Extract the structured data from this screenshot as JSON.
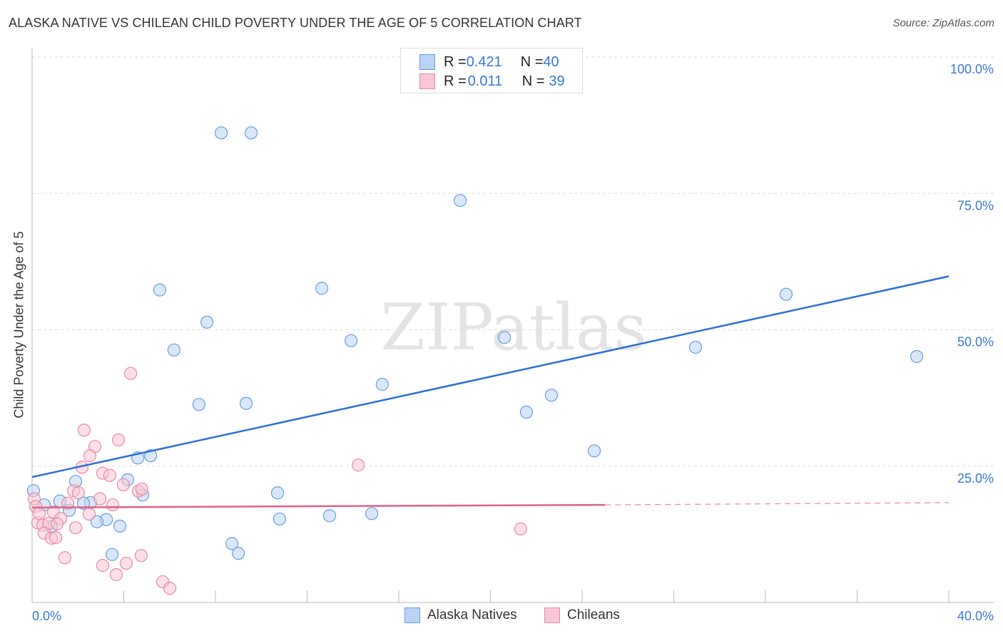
{
  "title": "ALASKA NATIVE VS CHILEAN CHILD POVERTY UNDER THE AGE OF 5 CORRELATION CHART",
  "source": "Source: ZipAtlas.com",
  "watermark": "ZIPatlas",
  "chart_data": {
    "type": "scatter",
    "title": "ALASKA NATIVE VS CHILEAN CHILD POVERTY UNDER THE AGE OF 5 CORRELATION CHART",
    "xlabel": "",
    "ylabel": "Child Poverty Under the Age of 5",
    "xlim": [
      0,
      40
    ],
    "ylim": [
      0,
      100
    ],
    "x_tick_labels": [
      "0.0%",
      "40.0%"
    ],
    "y_tick_labels": [
      "25.0%",
      "50.0%",
      "75.0%",
      "100.0%"
    ],
    "y_ticks": [
      25,
      50,
      75,
      100
    ],
    "grid": true,
    "legend": {
      "placement": "top-center",
      "entries": [
        {
          "r_label": "R = ",
          "r": "0.421",
          "n_label": "N = ",
          "n": "40"
        },
        {
          "r_label": "R = ",
          "r": "0.011",
          "n_label": "N = ",
          "n": "39"
        }
      ]
    },
    "series": [
      {
        "name": "Alaska Natives",
        "color": "#6a9de0",
        "fill": "#b9d3f4",
        "trend": {
          "x": [
            0,
            40
          ],
          "y": [
            23.0,
            59.8
          ]
        },
        "points": [
          [
            8.25,
            86.1
          ],
          [
            9.56,
            86.1
          ],
          [
            18.68,
            73.7
          ],
          [
            5.57,
            57.3
          ],
          [
            12.64,
            57.6
          ],
          [
            7.63,
            51.4
          ],
          [
            32.9,
            56.5
          ],
          [
            6.19,
            46.3
          ],
          [
            13.92,
            48.0
          ],
          [
            20.61,
            48.6
          ],
          [
            28.95,
            46.8
          ],
          [
            38.6,
            45.1
          ],
          [
            15.28,
            40.0
          ],
          [
            7.28,
            36.3
          ],
          [
            9.34,
            36.5
          ],
          [
            22.66,
            38.0
          ],
          [
            21.57,
            34.9
          ],
          [
            24.53,
            27.8
          ],
          [
            4.61,
            26.5
          ],
          [
            5.17,
            26.9
          ],
          [
            4.17,
            22.5
          ],
          [
            1.9,
            22.2
          ],
          [
            0.06,
            20.5
          ],
          [
            4.83,
            19.7
          ],
          [
            10.71,
            20.1
          ],
          [
            1.21,
            18.6
          ],
          [
            2.55,
            18.3
          ],
          [
            2.24,
            18.2
          ],
          [
            1.62,
            16.9
          ],
          [
            0.53,
            17.9
          ],
          [
            3.24,
            15.2
          ],
          [
            2.83,
            14.8
          ],
          [
            3.83,
            14.0
          ],
          [
            0.84,
            13.9
          ],
          [
            10.8,
            15.3
          ],
          [
            12.98,
            15.9
          ],
          [
            14.82,
            16.3
          ],
          [
            8.72,
            10.8
          ],
          [
            9.0,
            9.0
          ],
          [
            3.49,
            8.8
          ]
        ]
      },
      {
        "name": "Chileans",
        "color": "#e88aa6",
        "fill": "#f8c6d4",
        "trend": {
          "x": [
            0,
            25,
            40
          ],
          "y": [
            17.4,
            17.9,
            18.3
          ]
        },
        "points": [
          [
            4.3,
            42.0
          ],
          [
            2.27,
            31.6
          ],
          [
            3.77,
            29.8
          ],
          [
            2.74,
            28.6
          ],
          [
            2.52,
            26.9
          ],
          [
            2.18,
            24.8
          ],
          [
            14.23,
            25.2
          ],
          [
            3.08,
            23.7
          ],
          [
            3.39,
            23.3
          ],
          [
            1.81,
            20.5
          ],
          [
            3.98,
            21.6
          ],
          [
            2.02,
            20.1
          ],
          [
            4.64,
            20.4
          ],
          [
            4.79,
            20.8
          ],
          [
            2.96,
            19.0
          ],
          [
            3.52,
            17.9
          ],
          [
            0.09,
            19.0
          ],
          [
            0.16,
            17.6
          ],
          [
            1.56,
            18.2
          ],
          [
            2.49,
            16.2
          ],
          [
            0.93,
            16.6
          ],
          [
            1.25,
            15.4
          ],
          [
            0.25,
            14.6
          ],
          [
            0.47,
            14.2
          ],
          [
            0.72,
            14.5
          ],
          [
            1.09,
            14.4
          ],
          [
            0.53,
            12.7
          ],
          [
            0.84,
            11.8
          ],
          [
            1.03,
            11.9
          ],
          [
            1.9,
            13.7
          ],
          [
            21.32,
            13.5
          ],
          [
            1.43,
            8.2
          ],
          [
            3.08,
            6.8
          ],
          [
            4.11,
            7.2
          ],
          [
            4.76,
            8.6
          ],
          [
            3.67,
            5.1
          ],
          [
            5.7,
            3.8
          ],
          [
            6.01,
            2.6
          ],
          [
            0.31,
            16.3
          ]
        ]
      }
    ]
  }
}
